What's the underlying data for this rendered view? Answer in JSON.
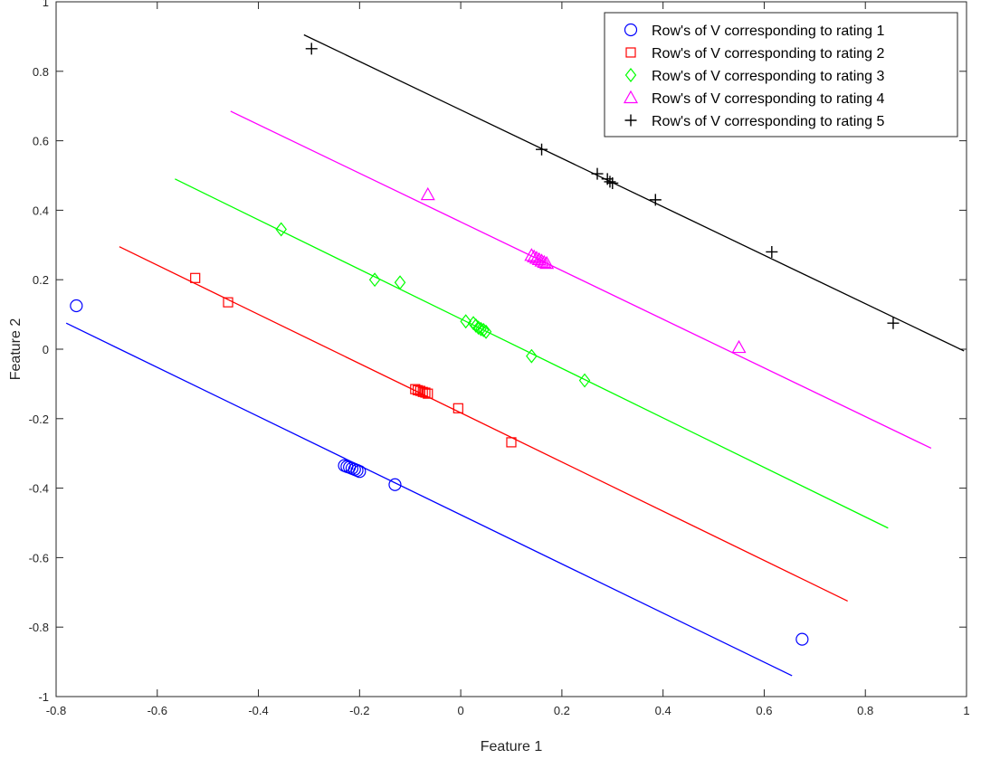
{
  "chart_data": {
    "type": "scatter",
    "title": "",
    "xlabel": "Feature 1",
    "ylabel": "Feature 2",
    "xlim": [
      -0.8,
      1
    ],
    "ylim": [
      -1,
      1
    ],
    "xticks": [
      -0.8,
      -0.6,
      -0.4,
      -0.2,
      0,
      0.2,
      0.4,
      0.6,
      0.8,
      1
    ],
    "yticks": [
      -1,
      -0.8,
      -0.6,
      -0.4,
      -0.2,
      0,
      0.2,
      0.4,
      0.6,
      0.8,
      1
    ],
    "x_tick_labels": [
      "-0.8",
      "-0.6",
      "-0.4",
      "-0.2",
      "0",
      "0.2",
      "0.4",
      "0.6",
      "0.8",
      "1"
    ],
    "y_tick_labels": [
      "-1",
      "-0.8",
      "-0.6",
      "-0.4",
      "-0.2",
      "0",
      "0.2",
      "0.4",
      "0.6",
      "0.8",
      "1"
    ],
    "grid": false,
    "legend_position": "top-right",
    "series": [
      {
        "name": "Row's of V corresponding to rating 1",
        "marker": "circle",
        "color": "#0000ff",
        "points": [
          [
            -0.76,
            0.125
          ],
          [
            -0.23,
            -0.335
          ],
          [
            -0.225,
            -0.338
          ],
          [
            -0.22,
            -0.34
          ],
          [
            -0.215,
            -0.343
          ],
          [
            -0.21,
            -0.346
          ],
          [
            -0.205,
            -0.349
          ],
          [
            -0.2,
            -0.352
          ],
          [
            -0.13,
            -0.39
          ],
          [
            0.675,
            -0.835
          ]
        ],
        "line": [
          [
            -0.78,
            0.075
          ],
          [
            0.655,
            -0.94
          ]
        ]
      },
      {
        "name": "Row's of V corresponding to rating 2",
        "marker": "square",
        "color": "#ff0000",
        "points": [
          [
            -0.525,
            0.205
          ],
          [
            -0.46,
            0.135
          ],
          [
            -0.09,
            -0.115
          ],
          [
            -0.085,
            -0.118
          ],
          [
            -0.08,
            -0.12
          ],
          [
            -0.075,
            -0.123
          ],
          [
            -0.07,
            -0.125
          ],
          [
            -0.065,
            -0.128
          ],
          [
            -0.005,
            -0.17
          ],
          [
            0.1,
            -0.268
          ]
        ],
        "line": [
          [
            -0.675,
            0.295
          ],
          [
            0.765,
            -0.725
          ]
        ]
      },
      {
        "name": "Row's of V corresponding to rating 3",
        "marker": "diamond",
        "color": "#00ff00",
        "points": [
          [
            -0.355,
            0.345
          ],
          [
            -0.17,
            0.2
          ],
          [
            -0.12,
            0.192
          ],
          [
            0.01,
            0.08
          ],
          [
            0.025,
            0.075
          ],
          [
            0.03,
            0.068
          ],
          [
            0.035,
            0.062
          ],
          [
            0.04,
            0.058
          ],
          [
            0.045,
            0.055
          ],
          [
            0.05,
            0.05
          ],
          [
            0.14,
            -0.02
          ],
          [
            0.245,
            -0.09
          ]
        ],
        "line": [
          [
            -0.565,
            0.49
          ],
          [
            0.845,
            -0.515
          ]
        ]
      },
      {
        "name": "Row's of V corresponding to rating 4",
        "marker": "triangle",
        "color": "#ff00ff",
        "points": [
          [
            -0.065,
            0.445
          ],
          [
            0.14,
            0.27
          ],
          [
            0.145,
            0.266
          ],
          [
            0.15,
            0.262
          ],
          [
            0.155,
            0.258
          ],
          [
            0.16,
            0.254
          ],
          [
            0.165,
            0.25
          ],
          [
            0.17,
            0.247
          ],
          [
            0.55,
            0.005
          ]
        ],
        "line": [
          [
            -0.455,
            0.685
          ],
          [
            0.93,
            -0.285
          ]
        ]
      },
      {
        "name": "Row's of V corresponding to rating 5",
        "marker": "plus",
        "color": "#000000",
        "points": [
          [
            -0.295,
            0.865
          ],
          [
            0.16,
            0.575
          ],
          [
            0.27,
            0.505
          ],
          [
            0.29,
            0.49
          ],
          [
            0.295,
            0.482
          ],
          [
            0.3,
            0.478
          ],
          [
            0.385,
            0.43
          ],
          [
            0.615,
            0.28
          ],
          [
            0.855,
            0.075
          ]
        ],
        "line": [
          [
            -0.31,
            0.905
          ],
          [
            0.995,
            -0.005
          ]
        ]
      }
    ]
  }
}
